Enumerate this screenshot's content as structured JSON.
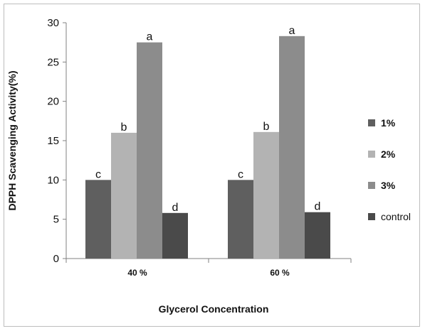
{
  "chart_data": {
    "type": "bar",
    "title": "",
    "xlabel": "Glycerol Concentration",
    "ylabel": "DPPH Scavenging Activity(%)",
    "categories": [
      "40 %",
      "60 %"
    ],
    "ylim": [
      0,
      30
    ],
    "yticks": [
      0,
      5,
      10,
      15,
      20,
      25,
      30
    ],
    "grid": false,
    "legend_position": "right",
    "series": [
      {
        "name": "1%",
        "color": "#5f5f5f",
        "legend_bold": true,
        "values": [
          10.0,
          10.0
        ],
        "labels": [
          "c",
          "c"
        ]
      },
      {
        "name": "2%",
        "color": "#b3b3b3",
        "legend_bold": true,
        "values": [
          16.0,
          16.1
        ],
        "labels": [
          "b",
          "b"
        ]
      },
      {
        "name": "3%",
        "color": "#8c8c8c",
        "legend_bold": true,
        "values": [
          27.5,
          28.3
        ],
        "labels": [
          "a",
          "a"
        ]
      },
      {
        "name": "control",
        "color": "#4a4a4a",
        "legend_bold": false,
        "values": [
          5.8,
          5.9
        ],
        "labels": [
          "d",
          "d"
        ]
      }
    ]
  }
}
